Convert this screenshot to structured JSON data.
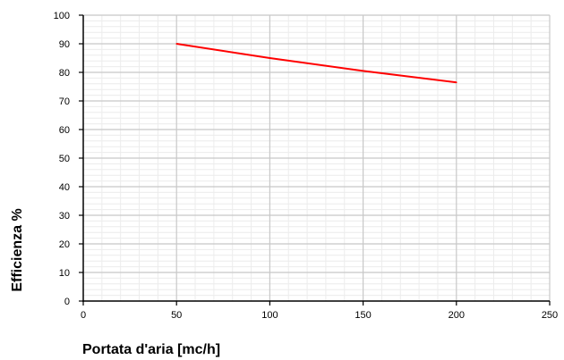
{
  "chart_data": {
    "type": "line",
    "title": "",
    "xlabel": "Portata d'aria [mc/h]",
    "ylabel": "Efficienza %",
    "xlim": [
      0,
      250
    ],
    "ylim": [
      0,
      100
    ],
    "x_ticks": [
      0,
      50,
      100,
      150,
      200,
      250
    ],
    "x_tick_labels": [
      "0",
      "50",
      "100",
      "150",
      "200",
      "250"
    ],
    "y_ticks": [
      0,
      10,
      20,
      30,
      40,
      50,
      60,
      70,
      80,
      90,
      100
    ],
    "y_tick_labels": [
      "0",
      "10",
      "20",
      "30",
      "40",
      "50",
      "60",
      "70",
      "80",
      "90",
      "100"
    ],
    "x_minor_step": 10,
    "y_minor_step": 2,
    "grid": true,
    "legend": "none",
    "series": [
      {
        "x": [
          50,
          100,
          150,
          200
        ],
        "values": [
          90,
          85,
          80.5,
          76.5
        ],
        "color": "#ff0000"
      }
    ]
  }
}
